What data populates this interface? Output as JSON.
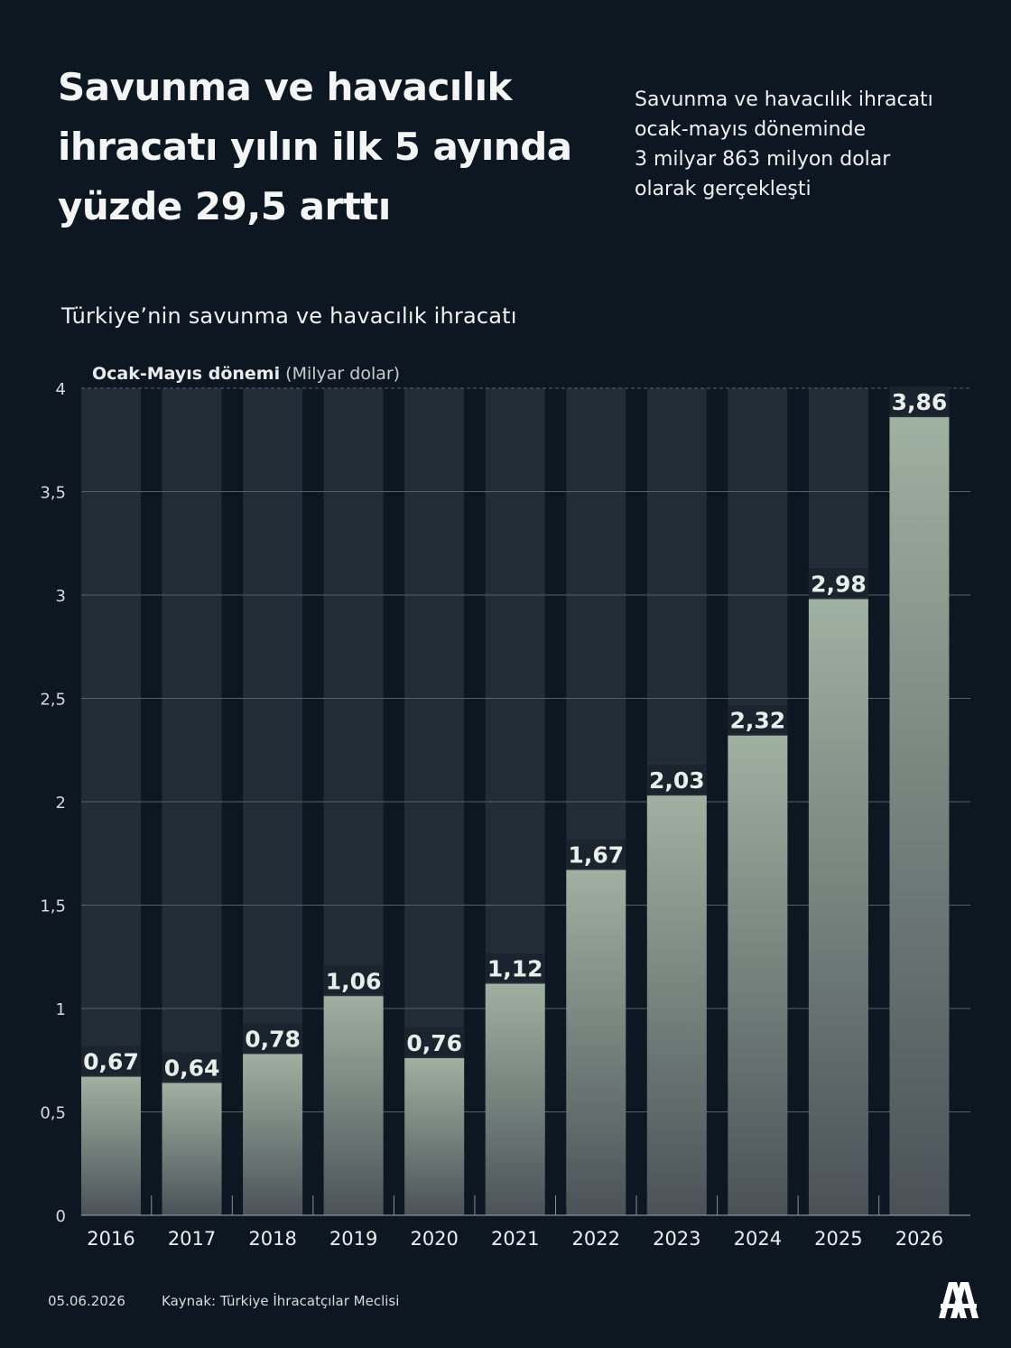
{
  "header": {
    "headline_lines": [
      "Savunma ve havacılık",
      "ihracatı yılın ilk 5 ayında",
      "yüzde 29,5 arttı"
    ],
    "summary_lines": [
      "Savunma ve havacılık ihracatı",
      "ocak-mayıs döneminde",
      "3 milyar 863 milyon dolar",
      "olarak gerçekleşti"
    ]
  },
  "chart_data": {
    "type": "bar",
    "title": "Türkiye’nin savunma ve havacılık ihracatı",
    "unit_label_bold": "Ocak-Mayıs dönemi",
    "unit_label_regular": "(Milyar dolar)",
    "categories": [
      "2016",
      "2017",
      "2018",
      "2019",
      "2020",
      "2021",
      "2022",
      "2023",
      "2024",
      "2025",
      "2026"
    ],
    "values": [
      0.67,
      0.64,
      0.78,
      1.06,
      0.76,
      1.12,
      1.67,
      2.03,
      2.32,
      2.98,
      3.86
    ],
    "value_labels": [
      "0,67",
      "0,64",
      "0,78",
      "1,06",
      "0,76",
      "1,12",
      "1,67",
      "2,03",
      "2,32",
      "2,98",
      "3,86"
    ],
    "ylim": [
      0,
      4
    ],
    "y_ticks": [
      0,
      0.5,
      1,
      1.5,
      2,
      2.5,
      3,
      3.5,
      4
    ],
    "y_tick_labels": [
      "0",
      "0,5",
      "1",
      "1,5",
      "2",
      "2,5",
      "3",
      "3,5",
      "4"
    ],
    "grid": true,
    "colors": {
      "background": "#0c1722",
      "track": "#222c36",
      "bar_top": "#9fb1a1",
      "bar_bottom": "#4a5258",
      "grid": "#56606a",
      "label_bg": "#1a242e",
      "label_text": "#e8eeea"
    }
  },
  "footer": {
    "date": "05.06.2026",
    "source": "Kaynak: Türkiye İhracatçılar Meclisi",
    "logo": "aa-logo"
  }
}
